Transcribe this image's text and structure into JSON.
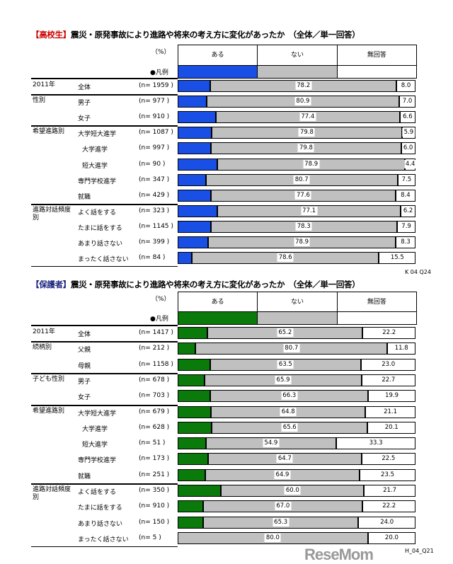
{
  "chart_data": [
    {
      "type": "bar",
      "stacked": true,
      "orientation": "horizontal",
      "title_tag": "【高校生】",
      "title": "震災・原発事故により進路や将来の考え方に変化があったか　（全体／単一回答）",
      "unit_label": "（%）",
      "legend_label": "●凡例",
      "series": [
        {
          "name": "ある",
          "color": "#1a4fe6"
        },
        {
          "name": "ない",
          "color": "#c0c0c0"
        },
        {
          "name": "無回答",
          "color": "#ffffff"
        }
      ],
      "title_tag_color": "#cc0000",
      "xlim": [
        0,
        100
      ],
      "rows": [
        {
          "group": "2011年",
          "label": "全体",
          "n": "(n= 1959 )",
          "values": [
            13.8,
            78.2,
            8.0
          ]
        },
        {
          "group": "性別",
          "label": "男子",
          "n": "(n=   977 )",
          "values": [
            12.2,
            80.9,
            7.0
          ]
        },
        {
          "group": "",
          "label": "女子",
          "n": "(n=   910 )",
          "values": [
            16.0,
            77.4,
            6.6
          ]
        },
        {
          "group": "希望進路別",
          "label": "大学短大進学",
          "n": "(n= 1087 )",
          "values": [
            14.4,
            79.8,
            5.9
          ]
        },
        {
          "group": "",
          "label": "大学進学",
          "n": "(n=   997 )",
          "values": [
            14.1,
            79.8,
            6.0
          ],
          "indent": true
        },
        {
          "group": "",
          "label": "短大進学",
          "n": "(n=     90 )",
          "values": [
            16.7,
            78.9,
            4.4
          ],
          "indent": true
        },
        {
          "group": "",
          "label": "専門学校進学",
          "n": "(n=   347 )",
          "values": [
            11.8,
            80.7,
            7.5
          ]
        },
        {
          "group": "",
          "label": "就職",
          "n": "(n=   429 )",
          "values": [
            14.0,
            77.6,
            8.4
          ]
        },
        {
          "group": "進路対話頻度別",
          "label": "よく話をする",
          "n": "(n=   323 )",
          "values": [
            16.7,
            77.1,
            6.2
          ]
        },
        {
          "group": "",
          "label": "たまに話をする",
          "n": "(n= 1145 )",
          "values": [
            13.9,
            78.3,
            7.9
          ]
        },
        {
          "group": "",
          "label": "あまり話さない",
          "n": "(n=   399 )",
          "values": [
            12.8,
            78.9,
            8.3
          ]
        },
        {
          "group": "",
          "label": "まったく話さない",
          "n": "(n=     84 )",
          "values": [
            6.0,
            78.6,
            15.5
          ]
        }
      ],
      "footnote": "K 04 Q24"
    },
    {
      "type": "bar",
      "stacked": true,
      "orientation": "horizontal",
      "title_tag": "【保護者】",
      "title": "震災・原発事故により進路や将来の考え方に変化があったか　（全体／単一回答）",
      "unit_label": "（%）",
      "legend_label": "●凡例",
      "series": [
        {
          "name": "ある",
          "color": "#0a7a0a"
        },
        {
          "name": "ない",
          "color": "#c0c0c0"
        },
        {
          "name": "無回答",
          "color": "#ffffff"
        }
      ],
      "title_tag_color": "#1a237e",
      "xlim": [
        0,
        100
      ],
      "rows": [
        {
          "group": "2011年",
          "label": "全体",
          "n": "(n= 1417 )",
          "values": [
            12.6,
            65.2,
            22.2
          ]
        },
        {
          "group": "続柄別",
          "label": "父親",
          "n": "(n=   212 )",
          "values": [
            7.5,
            80.7,
            11.8
          ]
        },
        {
          "group": "",
          "label": "母親",
          "n": "(n= 1158 )",
          "values": [
            13.6,
            63.5,
            23.0
          ]
        },
        {
          "group": "子ども性別",
          "label": "男子",
          "n": "(n=   678 )",
          "values": [
            11.4,
            65.9,
            22.7
          ]
        },
        {
          "group": "",
          "label": "女子",
          "n": "(n=   703 )",
          "values": [
            13.8,
            66.3,
            19.9
          ]
        },
        {
          "group": "希望進路別",
          "label": "大学短大進学",
          "n": "(n=   679 )",
          "values": [
            14.1,
            64.8,
            21.1
          ]
        },
        {
          "group": "",
          "label": "大学進学",
          "n": "(n=   628 )",
          "values": [
            14.3,
            65.6,
            20.1
          ],
          "indent": true
        },
        {
          "group": "",
          "label": "短大進学",
          "n": "(n=     51 )",
          "values": [
            11.8,
            54.9,
            33.3
          ],
          "indent": true
        },
        {
          "group": "",
          "label": "専門学校進学",
          "n": "(n=   173 )",
          "values": [
            12.7,
            64.7,
            22.5
          ]
        },
        {
          "group": "",
          "label": "就職",
          "n": "(n=   251 )",
          "values": [
            11.6,
            64.9,
            23.5
          ]
        },
        {
          "group": "進路対話頻度別",
          "label": "よく話をする",
          "n": "(n=   350 )",
          "values": [
            18.3,
            60.0,
            21.7
          ]
        },
        {
          "group": "",
          "label": "たまに話をする",
          "n": "(n=   910 )",
          "values": [
            10.8,
            67.0,
            22.2
          ]
        },
        {
          "group": "",
          "label": "あまり話さない",
          "n": "(n=   150 )",
          "values": [
            10.7,
            65.3,
            24.0
          ]
        },
        {
          "group": "",
          "label": "まったく話さない",
          "n": "(n=       5 )",
          "values": [
            null,
            80.0,
            20.0
          ]
        }
      ],
      "footnote": "H_04_Q21"
    }
  ],
  "missing_value_label": "—",
  "watermark": "ReseMom"
}
